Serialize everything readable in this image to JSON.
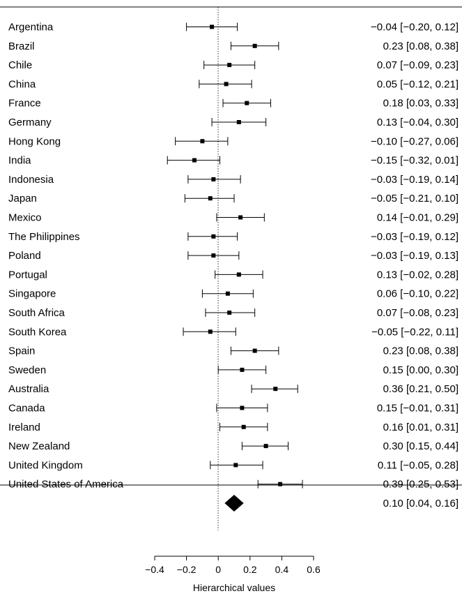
{
  "chart_data": {
    "type": "forest",
    "xlabel": "Hierarchical values",
    "xlim": [
      -0.4,
      0.6
    ],
    "xticks": [
      -0.4,
      -0.2,
      0,
      0.2,
      0.4,
      0.6
    ],
    "xtick_labels": [
      "−0.4",
      "−0.2",
      "0",
      "0.2",
      "0.4",
      "0.6"
    ],
    "reference_line": 0,
    "rows": [
      {
        "label": "Argentina",
        "est": -0.04,
        "lo": -0.2,
        "hi": 0.12,
        "text": "−0.04 [−0.20, 0.12]"
      },
      {
        "label": "Brazil",
        "est": 0.23,
        "lo": 0.08,
        "hi": 0.38,
        "text": "0.23 [0.08, 0.38]"
      },
      {
        "label": "Chile",
        "est": 0.07,
        "lo": -0.09,
        "hi": 0.23,
        "text": "0.07 [−0.09, 0.23]"
      },
      {
        "label": "China",
        "est": 0.05,
        "lo": -0.12,
        "hi": 0.21,
        "text": "0.05 [−0.12, 0.21]"
      },
      {
        "label": "France",
        "est": 0.18,
        "lo": 0.03,
        "hi": 0.33,
        "text": "0.18 [0.03, 0.33]"
      },
      {
        "label": "Germany",
        "est": 0.13,
        "lo": -0.04,
        "hi": 0.3,
        "text": "0.13 [−0.04, 0.30]"
      },
      {
        "label": "Hong Kong",
        "est": -0.1,
        "lo": -0.27,
        "hi": 0.06,
        "text": "−0.10 [−0.27, 0.06]"
      },
      {
        "label": "India",
        "est": -0.15,
        "lo": -0.32,
        "hi": 0.01,
        "text": "−0.15 [−0.32, 0.01]"
      },
      {
        "label": "Indonesia",
        "est": -0.03,
        "lo": -0.19,
        "hi": 0.14,
        "text": "−0.03 [−0.19, 0.14]"
      },
      {
        "label": "Japan",
        "est": -0.05,
        "lo": -0.21,
        "hi": 0.1,
        "text": "−0.05 [−0.21, 0.10]"
      },
      {
        "label": "Mexico",
        "est": 0.14,
        "lo": -0.01,
        "hi": 0.29,
        "text": "0.14 [−0.01, 0.29]"
      },
      {
        "label": "The Philippines",
        "est": -0.03,
        "lo": -0.19,
        "hi": 0.12,
        "text": "−0.03 [−0.19, 0.12]"
      },
      {
        "label": "Poland",
        "est": -0.03,
        "lo": -0.19,
        "hi": 0.13,
        "text": "−0.03 [−0.19, 0.13]"
      },
      {
        "label": "Portugal",
        "est": 0.13,
        "lo": -0.02,
        "hi": 0.28,
        "text": "0.13 [−0.02, 0.28]"
      },
      {
        "label": "Singapore",
        "est": 0.06,
        "lo": -0.1,
        "hi": 0.22,
        "text": "0.06 [−0.10, 0.22]"
      },
      {
        "label": "South Africa",
        "est": 0.07,
        "lo": -0.08,
        "hi": 0.23,
        "text": "0.07 [−0.08, 0.23]"
      },
      {
        "label": "South Korea",
        "est": -0.05,
        "lo": -0.22,
        "hi": 0.11,
        "text": "−0.05 [−0.22, 0.11]"
      },
      {
        "label": "Spain",
        "est": 0.23,
        "lo": 0.08,
        "hi": 0.38,
        "text": "0.23 [0.08, 0.38]"
      },
      {
        "label": "Sweden",
        "est": 0.15,
        "lo": 0.0,
        "hi": 0.3,
        "text": "0.15 [0.00, 0.30]"
      },
      {
        "label": "Australia",
        "est": 0.36,
        "lo": 0.21,
        "hi": 0.5,
        "text": "0.36 [0.21, 0.50]"
      },
      {
        "label": "Canada",
        "est": 0.15,
        "lo": -0.01,
        "hi": 0.31,
        "text": "0.15 [−0.01, 0.31]"
      },
      {
        "label": "Ireland",
        "est": 0.16,
        "lo": 0.01,
        "hi": 0.31,
        "text": "0.16 [0.01, 0.31]"
      },
      {
        "label": "New Zealand",
        "est": 0.3,
        "lo": 0.15,
        "hi": 0.44,
        "text": "0.30 [0.15, 0.44]"
      },
      {
        "label": "United Kingdom",
        "est": 0.11,
        "lo": -0.05,
        "hi": 0.28,
        "text": "0.11 [−0.05, 0.28]"
      },
      {
        "label": "United States of America",
        "est": 0.39,
        "lo": 0.25,
        "hi": 0.53,
        "text": "0.39 [0.25, 0.53]"
      }
    ],
    "summary": {
      "est": 0.1,
      "lo": 0.04,
      "hi": 0.16,
      "text": "0.10 [0.04, 0.16]"
    },
    "colors": {
      "ink": "#000000",
      "background": "#ffffff"
    }
  }
}
